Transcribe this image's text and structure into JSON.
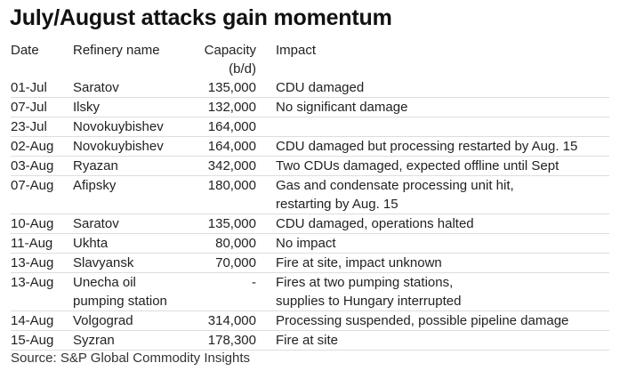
{
  "title": "July/August attacks gain momentum",
  "table": {
    "headers": {
      "date": "Date",
      "name": "Refinery name",
      "capacity": "Capacity",
      "capacity_unit": "(b/d)",
      "impact": "Impact"
    },
    "rows": [
      {
        "date": "01-Jul",
        "name": "Saratov",
        "capacity": "135,000",
        "impact": "CDU damaged"
      },
      {
        "date": "07-Jul",
        "name": "Ilsky",
        "capacity": "132,000",
        "impact": "No significant damage"
      },
      {
        "date": "23-Jul",
        "name": "Novokuybishev",
        "capacity": "164,000",
        "impact": ""
      },
      {
        "date": "02-Aug",
        "name": "Novokuybishev",
        "capacity": "164,000",
        "impact": "CDU damaged but processing restarted by Aug. 15"
      },
      {
        "date": "03-Aug",
        "name": "Ryazan",
        "capacity": "342,000",
        "impact": "Two CDUs damaged, expected offline until Sept"
      },
      {
        "date": "07-Aug",
        "name": "Afipsky",
        "capacity": "180,000",
        "impact": "Gas and condensate processing unit hit,",
        "impact2": "restarting by Aug. 15"
      },
      {
        "date": "10-Aug",
        "name": "Saratov",
        "capacity": "135,000",
        "impact": "CDU damaged, operations halted"
      },
      {
        "date": "11-Aug",
        "name": "Ukhta",
        "capacity": "80,000",
        "impact": "No impact"
      },
      {
        "date": "13-Aug",
        "name": "Slavyansk",
        "capacity": "70,000",
        "impact": "Fire at site, impact unknown"
      },
      {
        "date": "13-Aug",
        "name": "Unecha oil",
        "name2": "pumping station",
        "capacity": "-",
        "impact": "Fires  at two pumping stations,",
        "impact2": "supplies to Hungary interrupted"
      },
      {
        "date": "14-Aug",
        "name": "Volgograd",
        "capacity": "314,000",
        "impact": "Processing suspended, possible pipeline damage"
      },
      {
        "date": "15-Aug",
        "name": "Syzran",
        "capacity": "178,300",
        "impact": "Fire at site"
      }
    ]
  },
  "source": "Source: S&P Global Commodity Insights"
}
